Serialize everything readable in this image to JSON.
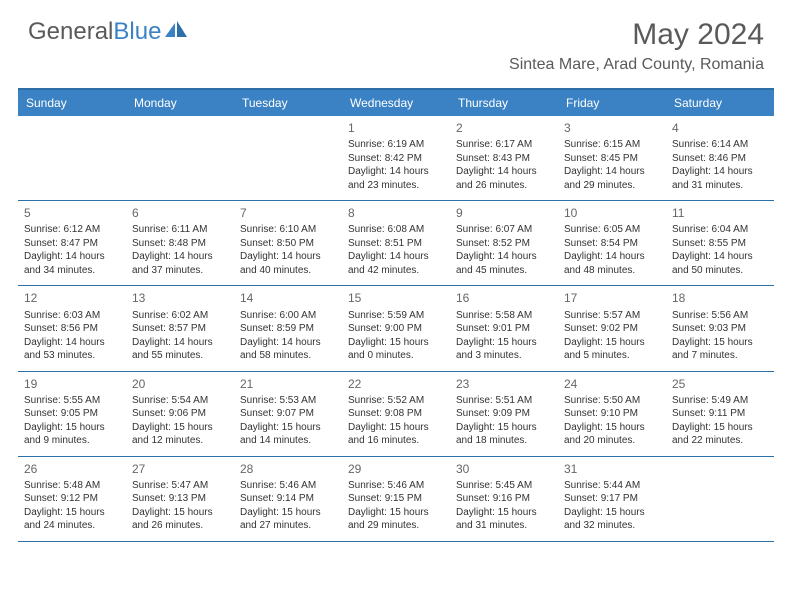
{
  "brand": {
    "part1": "General",
    "part2": "Blue"
  },
  "title": "May 2024",
  "location": "Sintea Mare, Arad County, Romania",
  "colors": {
    "header_bg": "#3b82c4",
    "border": "#2f6fa8",
    "text": "#333333",
    "muted": "#5a5a5a"
  },
  "day_names": [
    "Sunday",
    "Monday",
    "Tuesday",
    "Wednesday",
    "Thursday",
    "Friday",
    "Saturday"
  ],
  "weeks": [
    [
      null,
      null,
      null,
      {
        "n": "1",
        "sr": "6:19 AM",
        "ss": "8:42 PM",
        "dl": "14 hours and 23 minutes."
      },
      {
        "n": "2",
        "sr": "6:17 AM",
        "ss": "8:43 PM",
        "dl": "14 hours and 26 minutes."
      },
      {
        "n": "3",
        "sr": "6:15 AM",
        "ss": "8:45 PM",
        "dl": "14 hours and 29 minutes."
      },
      {
        "n": "4",
        "sr": "6:14 AM",
        "ss": "8:46 PM",
        "dl": "14 hours and 31 minutes."
      }
    ],
    [
      {
        "n": "5",
        "sr": "6:12 AM",
        "ss": "8:47 PM",
        "dl": "14 hours and 34 minutes."
      },
      {
        "n": "6",
        "sr": "6:11 AM",
        "ss": "8:48 PM",
        "dl": "14 hours and 37 minutes."
      },
      {
        "n": "7",
        "sr": "6:10 AM",
        "ss": "8:50 PM",
        "dl": "14 hours and 40 minutes."
      },
      {
        "n": "8",
        "sr": "6:08 AM",
        "ss": "8:51 PM",
        "dl": "14 hours and 42 minutes."
      },
      {
        "n": "9",
        "sr": "6:07 AM",
        "ss": "8:52 PM",
        "dl": "14 hours and 45 minutes."
      },
      {
        "n": "10",
        "sr": "6:05 AM",
        "ss": "8:54 PM",
        "dl": "14 hours and 48 minutes."
      },
      {
        "n": "11",
        "sr": "6:04 AM",
        "ss": "8:55 PM",
        "dl": "14 hours and 50 minutes."
      }
    ],
    [
      {
        "n": "12",
        "sr": "6:03 AM",
        "ss": "8:56 PM",
        "dl": "14 hours and 53 minutes."
      },
      {
        "n": "13",
        "sr": "6:02 AM",
        "ss": "8:57 PM",
        "dl": "14 hours and 55 minutes."
      },
      {
        "n": "14",
        "sr": "6:00 AM",
        "ss": "8:59 PM",
        "dl": "14 hours and 58 minutes."
      },
      {
        "n": "15",
        "sr": "5:59 AM",
        "ss": "9:00 PM",
        "dl": "15 hours and 0 minutes."
      },
      {
        "n": "16",
        "sr": "5:58 AM",
        "ss": "9:01 PM",
        "dl": "15 hours and 3 minutes."
      },
      {
        "n": "17",
        "sr": "5:57 AM",
        "ss": "9:02 PM",
        "dl": "15 hours and 5 minutes."
      },
      {
        "n": "18",
        "sr": "5:56 AM",
        "ss": "9:03 PM",
        "dl": "15 hours and 7 minutes."
      }
    ],
    [
      {
        "n": "19",
        "sr": "5:55 AM",
        "ss": "9:05 PM",
        "dl": "15 hours and 9 minutes."
      },
      {
        "n": "20",
        "sr": "5:54 AM",
        "ss": "9:06 PM",
        "dl": "15 hours and 12 minutes."
      },
      {
        "n": "21",
        "sr": "5:53 AM",
        "ss": "9:07 PM",
        "dl": "15 hours and 14 minutes."
      },
      {
        "n": "22",
        "sr": "5:52 AM",
        "ss": "9:08 PM",
        "dl": "15 hours and 16 minutes."
      },
      {
        "n": "23",
        "sr": "5:51 AM",
        "ss": "9:09 PM",
        "dl": "15 hours and 18 minutes."
      },
      {
        "n": "24",
        "sr": "5:50 AM",
        "ss": "9:10 PM",
        "dl": "15 hours and 20 minutes."
      },
      {
        "n": "25",
        "sr": "5:49 AM",
        "ss": "9:11 PM",
        "dl": "15 hours and 22 minutes."
      }
    ],
    [
      {
        "n": "26",
        "sr": "5:48 AM",
        "ss": "9:12 PM",
        "dl": "15 hours and 24 minutes."
      },
      {
        "n": "27",
        "sr": "5:47 AM",
        "ss": "9:13 PM",
        "dl": "15 hours and 26 minutes."
      },
      {
        "n": "28",
        "sr": "5:46 AM",
        "ss": "9:14 PM",
        "dl": "15 hours and 27 minutes."
      },
      {
        "n": "29",
        "sr": "5:46 AM",
        "ss": "9:15 PM",
        "dl": "15 hours and 29 minutes."
      },
      {
        "n": "30",
        "sr": "5:45 AM",
        "ss": "9:16 PM",
        "dl": "15 hours and 31 minutes."
      },
      {
        "n": "31",
        "sr": "5:44 AM",
        "ss": "9:17 PM",
        "dl": "15 hours and 32 minutes."
      },
      null
    ]
  ]
}
